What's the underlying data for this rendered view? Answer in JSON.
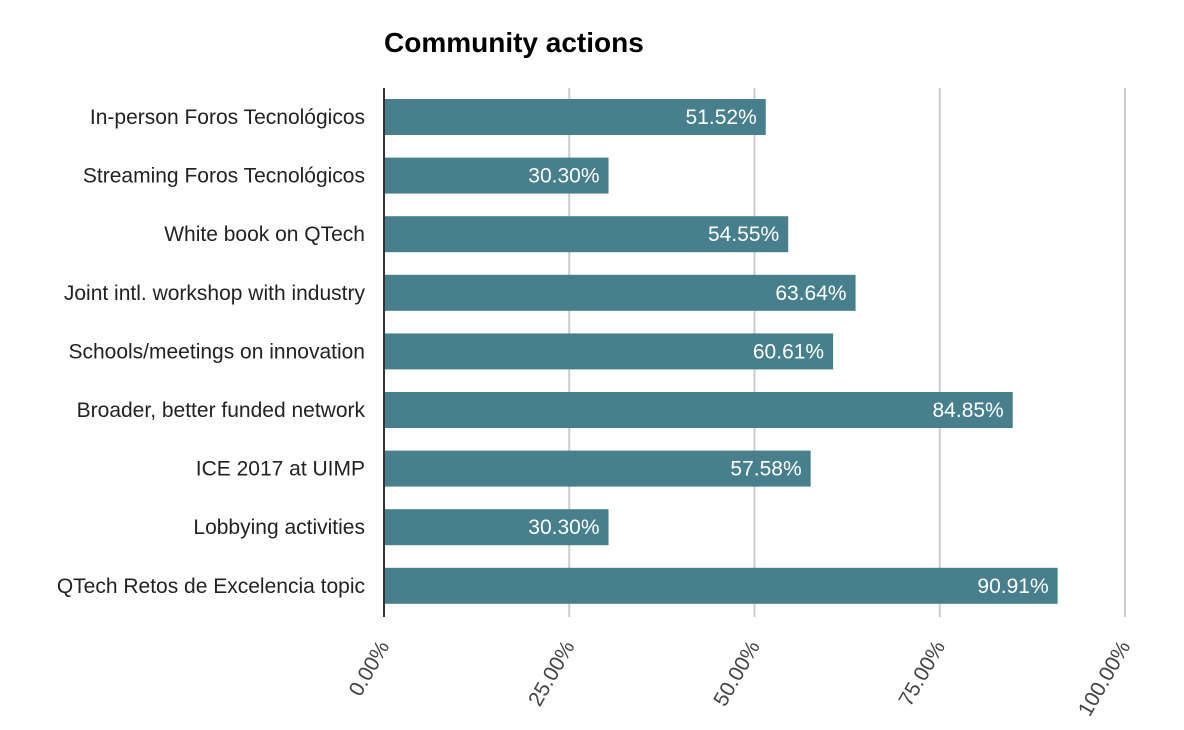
{
  "chart_data": {
    "type": "bar",
    "orientation": "horizontal",
    "title": "Community actions",
    "xlabel": "",
    "ylabel": "",
    "categories": [
      "In-person Foros Tecnológicos",
      "Streaming Foros Tecnológicos",
      "White book on QTech",
      "Joint intl. workshop with industry",
      "Schools/meetings on innovation",
      "Broader, better funded network",
      "ICE 2017 at UIMP",
      "Lobbying activities",
      "QTech Retos de Excelencia topic"
    ],
    "values": [
      51.52,
      30.3,
      54.55,
      63.64,
      60.61,
      84.85,
      57.58,
      30.3,
      90.91
    ],
    "value_labels": [
      "51.52%",
      "30.30%",
      "54.55%",
      "63.64%",
      "60.61%",
      "84.85%",
      "57.58%",
      "30.30%",
      "90.91%"
    ],
    "xlim": [
      0,
      100
    ],
    "xticks": [
      0,
      25,
      50,
      75,
      100
    ],
    "xtick_labels": [
      "0.00%",
      "25.00%",
      "50.00%",
      "75.00%",
      "100.00%"
    ],
    "grid": true,
    "bar_color": "#47808c",
    "grid_color": "#cccccc",
    "axis_color": "#333333"
  }
}
